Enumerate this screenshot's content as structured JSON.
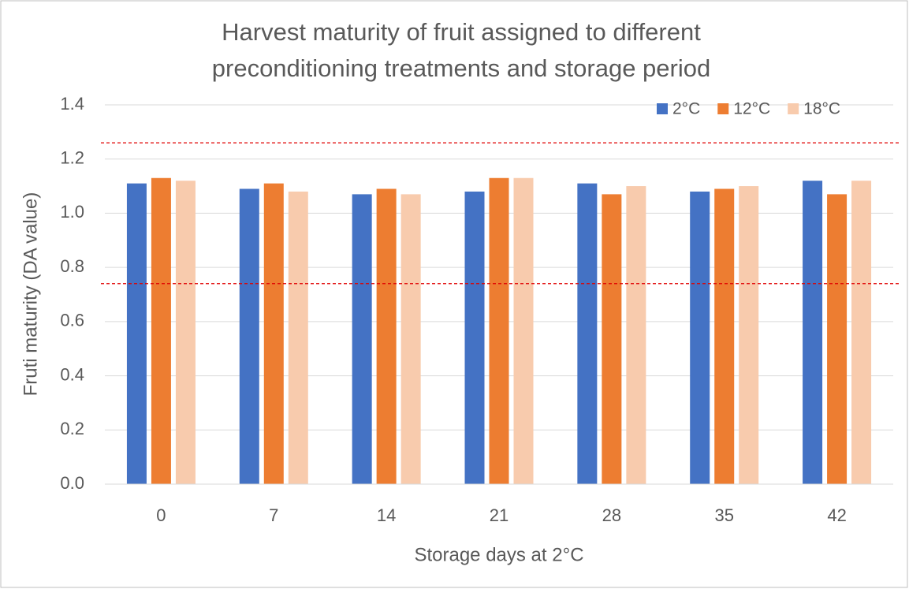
{
  "chart_data": {
    "type": "bar",
    "title": "Harvest maturity of fruit assigned to different preconditioning treatments and storage period",
    "x_label": "Storage days at 2°C",
    "y_label": "Fruti maturity (DA value)",
    "categories": [
      "0",
      "7",
      "14",
      "21",
      "28",
      "35",
      "42"
    ],
    "series": [
      {
        "name": "2°C",
        "color": "#4472c4",
        "values": [
          1.11,
          1.09,
          1.07,
          1.08,
          1.11,
          1.08,
          1.12
        ]
      },
      {
        "name": "12°C",
        "color": "#ed7d31",
        "values": [
          1.13,
          1.11,
          1.09,
          1.13,
          1.07,
          1.09,
          1.07
        ]
      },
      {
        "name": "18°C",
        "color": "#f8cbad",
        "values": [
          1.12,
          1.08,
          1.07,
          1.13,
          1.1,
          1.1,
          1.12
        ]
      }
    ],
    "ylim": [
      0,
      1.4
    ],
    "yticks": [
      {
        "value": 0,
        "label": "0.0"
      },
      {
        "value": 0.2,
        "label": "0.2"
      },
      {
        "value": 0.4,
        "label": "0.4"
      },
      {
        "value": 0.6,
        "label": "0.6"
      },
      {
        "value": 0.8,
        "label": "0.8"
      },
      {
        "value": 1.0,
        "label": "1.0"
      },
      {
        "value": 1.2,
        "label": "1.2"
      },
      {
        "value": 1.4,
        "label": "1.4"
      }
    ],
    "grid": true,
    "legend": "top-right",
    "reference_lines": {
      "color": "#e00000",
      "values": [
        1.26,
        0.74
      ]
    }
  }
}
